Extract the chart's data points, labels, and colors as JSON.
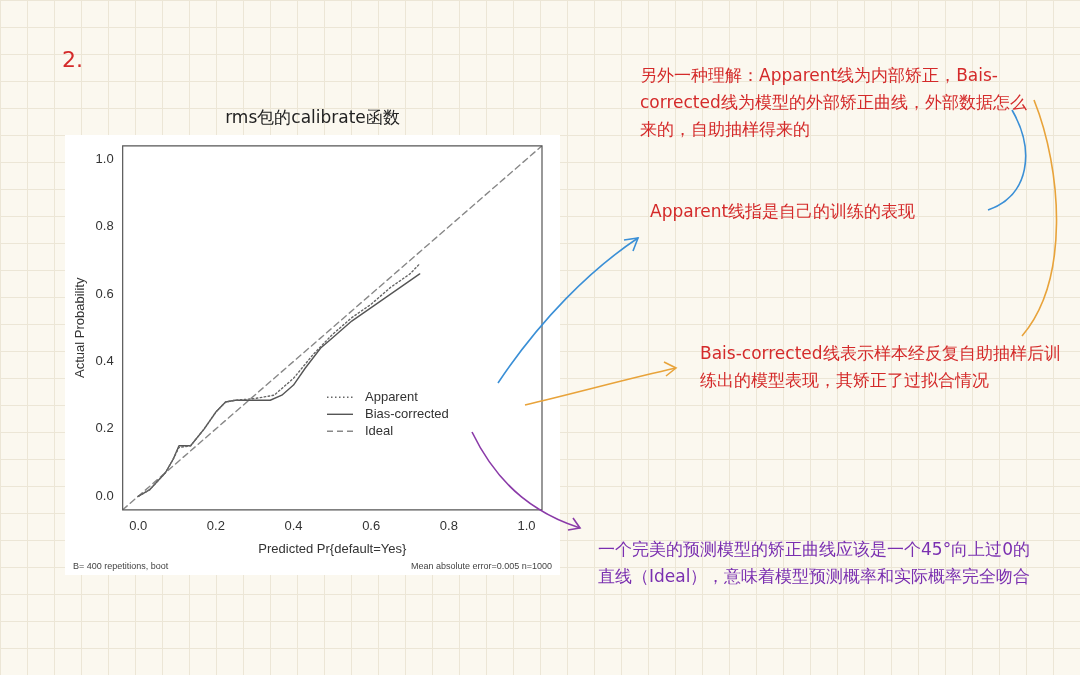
{
  "chart_data": {
    "type": "line",
    "title": "rms包的calibrate函数",
    "xlabel": "Predicted Pr{default=Yes}",
    "ylabel": "Actual Probability",
    "xlim": [
      -0.04,
      1.04
    ],
    "ylim": [
      -0.04,
      1.04
    ],
    "xticks": [
      {
        "value": 0,
        "label": "0.0"
      },
      0.2,
      0.4,
      0.6,
      0.8,
      {
        "value": 1,
        "label": "1.0"
      }
    ],
    "yticks": [
      {
        "value": 0,
        "label": "0.0"
      },
      0.2,
      0.4,
      0.6,
      0.8,
      {
        "value": 1,
        "label": "1.0"
      }
    ],
    "marker": "none",
    "legend": "bottom right",
    "series": [
      {
        "name": "Apparent",
        "color": "#666666",
        "line_style": "dotted",
        "x": [
          0,
          0.03,
          0.07,
          0.09,
          0.105,
          0.135,
          0.17,
          0.2,
          0.225,
          0.25,
          0.3,
          0.35,
          0.4,
          0.45,
          0.5,
          0.55,
          0.6,
          0.65,
          0.7,
          0.725
        ],
        "values": [
          0,
          0.02,
          0.07,
          0.11,
          0.145,
          0.15,
          0.2,
          0.25,
          0.28,
          0.285,
          0.29,
          0.3,
          0.35,
          0.42,
          0.48,
          0.53,
          0.57,
          0.62,
          0.66,
          0.69
        ]
      },
      {
        "name": "Bias-corrected",
        "color": "#555555",
        "line_style": "solid",
        "x": [
          0,
          0.03,
          0.07,
          0.09,
          0.105,
          0.135,
          0.17,
          0.2,
          0.225,
          0.25,
          0.3,
          0.34,
          0.37,
          0.4,
          0.43,
          0.47,
          0.5,
          0.55,
          0.6,
          0.65,
          0.7,
          0.725
        ],
        "values": [
          0,
          0.02,
          0.07,
          0.11,
          0.15,
          0.15,
          0.2,
          0.25,
          0.28,
          0.285,
          0.285,
          0.285,
          0.3,
          0.33,
          0.38,
          0.44,
          0.47,
          0.52,
          0.56,
          0.6,
          0.64,
          0.66
        ]
      },
      {
        "name": "Ideal",
        "color": "#888888",
        "line_style": "dashed",
        "x": [
          -0.04,
          1.04
        ],
        "values": [
          -0.04,
          1.04
        ]
      }
    ],
    "annotations": [
      "B= 400 repetitions, boot",
      "Mean absolute error=0.005 n=1000",
      "2.",
      "另外一种理解：Apparent线为内部矫正，Bais-corrected线为模型的外部矫正曲线，外部数据怎么来的，自助抽样得来的",
      "Apparent线指是自己的训练的表现",
      "Bais-corrected线表示样本经反复自助抽样后训练出的模型表现，其矫正了过拟合情况",
      "一个完美的预测模型的矫正曲线应该是一个45°向上过0的直线（Ideal），意味着模型预测概率和实际概率完全吻合"
    ]
  }
}
